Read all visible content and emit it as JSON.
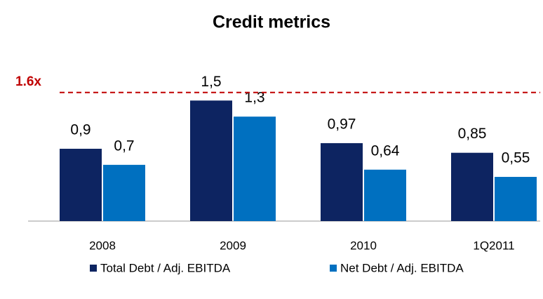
{
  "chart_data": {
    "type": "bar",
    "title": "Credit metrics",
    "categories": [
      "2008",
      "2009",
      "2010",
      "1Q2011"
    ],
    "series": [
      {
        "name": "Total Debt / Adj. EBITDA",
        "color": "#0d2461",
        "values": [
          0.9,
          1.5,
          0.97,
          0.85
        ],
        "value_labels": [
          "0,9",
          "1,5",
          "0,97",
          "0,85"
        ]
      },
      {
        "name": "Net Debt / Adj. EBITDA",
        "color": "#0070c0",
        "values": [
          0.7,
          1.3,
          0.64,
          0.55
        ],
        "value_labels": [
          "0,7",
          "1,3",
          "0,64",
          "0,55"
        ]
      }
    ],
    "ylim": [
      0,
      2
    ],
    "reference_line": {
      "value": 1.6,
      "label": "1.6x",
      "color": "#c00000"
    },
    "legend": "bottom"
  }
}
